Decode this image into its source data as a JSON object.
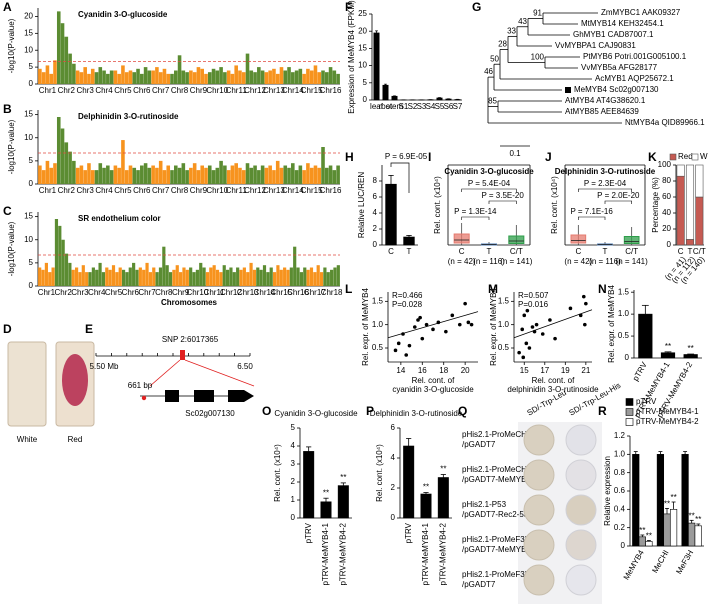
{
  "panel_labels": [
    "A",
    "B",
    "C",
    "D",
    "E",
    "F",
    "G",
    "H",
    "I",
    "J",
    "K",
    "L",
    "M",
    "N",
    "O",
    "P",
    "Q",
    "R"
  ],
  "chart_data": [
    {
      "type": "manhattan",
      "title": "Cyanidin 3-O-glucoside",
      "ylabel": "-log10(P-value)",
      "categories": [
        "Chr1",
        "Chr2",
        "Chr3",
        "Chr4",
        "Chr5",
        "Chr6",
        "Chr7",
        "Chr8",
        "Chr9",
        "Chr10",
        "Chr11",
        "Chr12",
        "Chr13",
        "Chr14",
        "Chr15",
        "Chr16"
      ],
      "values": [
        [
          4.5,
          3.5,
          5.5,
          3,
          7
        ],
        [
          21.5,
          18,
          14,
          9,
          6
        ],
        [
          4,
          3.5,
          5,
          3,
          4.5
        ],
        [
          3.5,
          5,
          4,
          3,
          4
        ],
        [
          4,
          3,
          5.5,
          3.5,
          4
        ],
        [
          3.5,
          4.5,
          3,
          5,
          4
        ],
        [
          4,
          5,
          3.5,
          4.5,
          3
        ],
        [
          3,
          4,
          8.5,
          4,
          3.5
        ],
        [
          4,
          3.5,
          5,
          4.5,
          3
        ],
        [
          3.5,
          4.5,
          4,
          5,
          3.5
        ],
        [
          4,
          3,
          5.5,
          4,
          3.5
        ],
        [
          9,
          4,
          3.5,
          5,
          4
        ],
        [
          3.5,
          4,
          4.5,
          3,
          5
        ],
        [
          4,
          5,
          3.5,
          4,
          4.5
        ],
        [
          3,
          4.5,
          4,
          5.5,
          3.5
        ],
        [
          4,
          3.5,
          5,
          4,
          3
        ]
      ],
      "colors": [
        "#f7931e",
        "#5b8c32"
      ],
      "threshold": 6.7,
      "ylim": [
        0,
        22.5
      ],
      "yticks": [
        0,
        5,
        10,
        15,
        20
      ]
    },
    {
      "type": "manhattan",
      "title": "Delphinidin 3-O-rutinoside",
      "ylabel": "-log10(P-value)",
      "categories": [
        "Chr1",
        "Chr2",
        "Chr3",
        "Chr4",
        "Chr5",
        "Chr6",
        "Chr7",
        "Chr8",
        "Chr9",
        "Chr10",
        "Chr11",
        "Chr12",
        "Chr13",
        "Chr14",
        "Chr15",
        "Chr16"
      ],
      "values": [
        [
          4,
          3,
          5,
          3.5,
          4.5
        ],
        [
          14.5,
          12,
          9,
          7,
          5
        ],
        [
          3.5,
          4,
          3,
          4.5,
          3
        ],
        [
          3,
          4.5,
          3.5,
          4,
          3
        ],
        [
          4,
          3.5,
          9.5,
          3,
          4
        ],
        [
          3.5,
          3,
          4,
          4.5,
          3.5
        ],
        [
          4,
          3.5,
          5,
          3,
          4
        ],
        [
          3,
          4,
          3.5,
          4.5,
          3
        ],
        [
          3.5,
          4.5,
          3,
          4,
          3.5
        ],
        [
          4,
          3,
          3.5,
          5,
          4
        ],
        [
          3,
          4,
          4.5,
          3.5,
          3
        ],
        [
          4.5,
          3.5,
          4,
          3,
          4
        ],
        [
          3.5,
          4,
          3,
          5,
          3.5
        ],
        [
          4,
          3.5,
          4.5,
          3,
          4
        ],
        [
          3,
          4.5,
          3.5,
          4,
          3.5
        ],
        [
          8,
          3.5,
          4,
          3,
          4
        ]
      ],
      "colors": [
        "#f7931e",
        "#5b8c32"
      ],
      "threshold": 6.7,
      "ylim": [
        0,
        16
      ],
      "yticks": [
        0,
        5,
        10,
        15
      ]
    },
    {
      "type": "manhattan",
      "title": "SR endothelium color",
      "ylabel": "-log10(P-value)",
      "xlabel": "Chromosomes",
      "categories": [
        "Chr1",
        "Chr2",
        "Chr3",
        "Chr4",
        "Chr5",
        "Chr6",
        "Chr7",
        "Chr8",
        "Chr9",
        "Chr10",
        "Chr11",
        "Chr12",
        "Chr13",
        "Chr14",
        "Chr15",
        "Chr16",
        "Chr17",
        "Chr18"
      ],
      "values": [
        [
          4,
          3.5,
          5,
          3,
          4
        ],
        [
          14.5,
          13,
          10,
          7,
          5
        ],
        [
          3.5,
          4,
          3,
          4.5,
          3
        ],
        [
          3,
          4,
          3.5,
          5,
          3
        ],
        [
          4,
          3.5,
          4.5,
          3,
          4
        ],
        [
          3.5,
          3,
          4,
          5,
          3.5
        ],
        [
          4,
          3.5,
          5,
          3,
          4
        ],
        [
          3,
          4,
          8.5,
          4.5,
          3
        ],
        [
          3.5,
          4.5,
          3,
          4,
          3.5
        ],
        [
          4,
          3,
          3.5,
          5,
          4
        ],
        [
          3,
          4,
          4.5,
          3.5,
          3
        ],
        [
          4.5,
          3.5,
          4,
          3,
          4
        ],
        [
          3.5,
          4,
          3,
          5,
          3.5
        ],
        [
          4,
          3.5,
          4.5,
          3,
          4
        ],
        [
          3,
          4.5,
          3.5,
          4,
          3.5
        ],
        [
          4,
          8.5,
          4,
          3,
          4
        ],
        [
          3.5,
          4,
          3,
          4.5,
          3
        ],
        [
          4,
          3,
          3.5,
          4,
          4.5
        ]
      ],
      "colors": [
        "#f7931e",
        "#5b8c32"
      ],
      "threshold": 6.7,
      "ylim": [
        0,
        16
      ],
      "yticks": [
        0,
        5,
        10,
        15
      ]
    },
    {
      "type": "bar",
      "ylabel": "Expression of MeMYB4 (FPKM)",
      "categories": [
        "leaf",
        "root",
        "stem",
        "S1",
        "S2",
        "S3",
        "S4",
        "S5",
        "S6",
        "S7"
      ],
      "values": [
        19.5,
        4.3,
        1.1,
        0.05,
        0.05,
        0.05,
        0.1,
        0.6,
        0.3,
        0.15
      ],
      "errors": [
        0.6,
        0.3,
        0.1,
        0,
        0,
        0,
        0,
        0.1,
        0.05,
        0.05
      ],
      "color": "#000000",
      "ylim": [
        0,
        25
      ],
      "yticks": [
        0,
        5,
        10,
        15,
        20,
        25
      ]
    },
    {
      "type": "bar",
      "ylabel": "Relative LUC/REN",
      "categories": [
        "C",
        "T"
      ],
      "values": [
        7.6,
        1.0
      ],
      "errors": [
        1.1,
        0.2
      ],
      "p_value": "P = 6.9E-05",
      "color": "#000000",
      "ylim": [
        0,
        10
      ],
      "yticks": [
        0,
        2,
        4,
        6,
        8
      ]
    },
    {
      "type": "box",
      "title": "Cyanidin 3-O-glucoside",
      "ylabel": "Rel. cont. (x10⁴)",
      "categories": [
        "C",
        "T",
        "C/T"
      ],
      "n_labels": [
        "(n = 42)",
        "(n = 116)",
        "(n = 141)"
      ],
      "boxes": [
        {
          "whisker_low": 0,
          "q1": 0.2,
          "median": 0.5,
          "q3": 1.1,
          "whisker_high": 2.2
        },
        {
          "whisker_low": 0,
          "q1": 0.02,
          "median": 0.05,
          "q3": 0.1,
          "whisker_high": 0.3
        },
        {
          "whisker_low": 0,
          "q1": 0.15,
          "median": 0.4,
          "q3": 0.9,
          "whisker_high": 2.0
        }
      ],
      "colors": [
        "#e57b6f",
        "#4a7ab5",
        "#2e9e4a"
      ],
      "p_values": [
        "P = 5.4E-04",
        "P = 3.5E-20",
        "P = 1.3E-14"
      ],
      "ylim": [
        0,
        8
      ]
    },
    {
      "type": "box",
      "title": "Delphinidin 3-O-rutinoside",
      "ylabel": "Rel. cont. (x10⁴)",
      "categories": [
        "C",
        "T",
        "C/T"
      ],
      "n_labels": [
        "(n = 42)",
        "(n = 116)",
        "(n = 141)"
      ],
      "boxes": [
        {
          "whisker_low": 0,
          "q1": 0.2,
          "median": 0.45,
          "q3": 1.0,
          "whisker_high": 2.0
        },
        {
          "whisker_low": 0,
          "q1": 0.02,
          "median": 0.05,
          "q3": 0.1,
          "whisker_high": 0.3
        },
        {
          "whisker_low": 0,
          "q1": 0.15,
          "median": 0.35,
          "q3": 0.85,
          "whisker_high": 1.8
        }
      ],
      "colors": [
        "#e57b6f",
        "#4a7ab5",
        "#2e9e4a"
      ],
      "p_values": [
        "P = 2.3E-04",
        "P = 2.0E-20",
        "P = 7.1E-16"
      ],
      "ylim": [
        0,
        8
      ]
    },
    {
      "type": "stacked_bar",
      "ylabel": "Percentage (%)",
      "categories": [
        "C",
        "T",
        "C/T"
      ],
      "n_labels": [
        "(n = 41)",
        "(n = 112)",
        "(n = 140)"
      ],
      "series": [
        {
          "name": "Red",
          "color": "#c55a52",
          "values": [
            86,
            7,
            60
          ]
        },
        {
          "name": "White",
          "color": "#ffffff",
          "values": [
            14,
            93,
            40
          ]
        }
      ],
      "ylim": [
        0,
        100
      ],
      "yticks": [
        0,
        20,
        40,
        60,
        80,
        100
      ]
    },
    {
      "type": "scatter",
      "annotations": [
        "R=0.466",
        "P=0.028"
      ],
      "ylabel": "Rel. expr. of MeMYB4",
      "xlabel": [
        "Rel. cont. of",
        "cyanidin 3-O-glucoside"
      ],
      "x": [
        13.5,
        14.2,
        14.8,
        15.3,
        15.6,
        16.0,
        16.4,
        17.0,
        17.5,
        18.2,
        18.8,
        19.5,
        20.0,
        20.3,
        20.6,
        14.5,
        15.8,
        13.8
      ],
      "y": [
        0.45,
        0.8,
        0.55,
        0.95,
        1.1,
        0.7,
        1.0,
        0.9,
        1.05,
        0.85,
        1.2,
        1.0,
        1.45,
        1.05,
        1.0,
        0.35,
        1.15,
        0.6
      ],
      "fit_line": {
        "x": [
          12.8,
          21.2
        ],
        "y": [
          0.72,
          1.28
        ]
      },
      "xlim": [
        12.8,
        21.2
      ],
      "ylim": [
        0.2,
        1.7
      ],
      "xticks": [
        14,
        16,
        18,
        20
      ],
      "yticks": [
        0.5,
        {
          "value": 1,
          "label": "1.0"
        },
        1.5
      ]
    },
    {
      "type": "scatter",
      "annotations": [
        "R=0.507",
        "P=0.016"
      ],
      "ylabel": "Rel. expr. of MeMYB4",
      "xlabel": [
        "Rel. cont. of",
        "delphinidin 3-O-rutinoside"
      ],
      "x": [
        14.5,
        14.8,
        15.0,
        15.2,
        15.5,
        15.8,
        16.2,
        16.8,
        17.5,
        18.0,
        19.5,
        20.5,
        20.8,
        21.0,
        15.3,
        14.9,
        16.0,
        20.9
      ],
      "y": [
        0.4,
        0.9,
        1.2,
        0.6,
        0.5,
        0.95,
        1.0,
        0.8,
        1.1,
        0.7,
        1.35,
        1.2,
        1.6,
        1.45,
        1.3,
        0.3,
        0.85,
        1.0
      ],
      "fit_line": {
        "x": [
          14,
          21.6
        ],
        "y": [
          0.72,
          1.32
        ]
      },
      "xlim": [
        14,
        21.6
      ],
      "ylim": [
        0.2,
        1.7
      ],
      "xticks": [
        15,
        17,
        19,
        21
      ],
      "yticks": [
        0.5,
        {
          "value": 1,
          "label": "1.0"
        },
        1.5
      ]
    },
    {
      "type": "bar",
      "ylabel": "Rel. expr. of MeMYB4",
      "categories": [
        "pTRV",
        "pTRV-MeMYB4-1",
        "pTRV-MeMYB4-2"
      ],
      "values": [
        1.0,
        0.12,
        0.08
      ],
      "errors": [
        0.2,
        0.02,
        0.01
      ],
      "significance": [
        null,
        "**",
        "**"
      ],
      "color": "#000000",
      "ylim": [
        0,
        1.55
      ],
      "yticks": [
        0,
        0.5,
        {
          "value": 1,
          "label": "1.0"
        },
        1.5
      ]
    },
    {
      "type": "bar",
      "title": "Cyanidin 3-O-glucoside",
      "ylabel": "Rel. cont. (x10⁴)",
      "categories": [
        "pTRV",
        "pTRV-MeMYB4-1",
        "pTRV-MeMYB4-2"
      ],
      "values": [
        3.7,
        0.9,
        1.8
      ],
      "errors": [
        0.25,
        0.2,
        0.15
      ],
      "significance": [
        null,
        "**",
        "**"
      ],
      "color": "#000000",
      "ylim": [
        0,
        5
      ],
      "yticks": [
        0,
        1,
        2,
        3,
        4,
        5
      ]
    },
    {
      "type": "bar",
      "title": "Delphinidin 3-O-rutinoside",
      "ylabel": "Rel. cont. (x10⁴)",
      "categories": [
        "pTRV",
        "pTRV-MeMYB4-1",
        "pTRV-MeMYB4-2"
      ],
      "values": [
        4.8,
        1.6,
        2.7
      ],
      "errors": [
        0.5,
        0.1,
        0.2
      ],
      "significance": [
        null,
        "**",
        "**"
      ],
      "color": "#000000",
      "ylim": [
        0,
        6
      ],
      "yticks": [
        0,
        2,
        4,
        6
      ]
    },
    {
      "type": "grouped_bar",
      "ylabel": "Relative expression",
      "categories": [
        "MeMYB4",
        "MeCHI",
        "MeF3H"
      ],
      "series": [
        {
          "name": "pTRV",
          "color": "#000000",
          "values": [
            1.0,
            1.0,
            1.0
          ],
          "errors": [
            0.03,
            0.03,
            0.03
          ],
          "significance": [
            null,
            null,
            null
          ]
        },
        {
          "name": "pTRV-MeMYB4-1",
          "color": "#9a9a9a",
          "values": [
            0.1,
            0.35,
            0.25
          ],
          "errors": [
            0.02,
            0.06,
            0.03
          ],
          "significance": [
            "**",
            "**",
            "**"
          ]
        },
        {
          "name": "pTRV-MeMYB4-2",
          "color": "#ffffff",
          "values": [
            0.05,
            0.4,
            0.22
          ],
          "errors": [
            0.01,
            0.08,
            0.02
          ],
          "significance": [
            "**",
            "**",
            "**"
          ]
        }
      ],
      "ylim": [
        0,
        1.2
      ],
      "yticks": [
        0,
        0.2,
        0.4,
        0.6,
        0.8,
        {
          "value": 1,
          "label": "1.0"
        },
        1.2
      ]
    }
  ],
  "photos": {
    "labels": [
      "White",
      "Red"
    ]
  },
  "gene_diagram": {
    "snp": "SNP 2:6017365",
    "start": "5.50 Mb",
    "end": "6.50",
    "promoter": "661 bp",
    "gene": "Sc02g007130"
  },
  "tree": {
    "taxa": [
      "ZmMYBC1 AAK09327",
      "MtMYB14 KEH32454.1",
      "GhMYB1 CAD87007.1",
      "VvMYBPA1 CAJ90831",
      "PtMYB6 Potri.001G005100.1",
      "VvMYB5a AFG28177",
      "AcMYB1 AQP25672.1",
      "MeMYB4 Sc02g007130",
      "AtMYB4 AT4G38620.1",
      "AtMYB85 AEE84639",
      "NtMYB4a QID89966.1"
    ],
    "bootstrap": [
      91,
      43,
      33,
      28,
      50,
      100,
      46,
      85
    ],
    "scale": 0.1
  },
  "yeast": {
    "columns": [
      "SD/-Trp-Leu",
      "SD/-Trp-Leu-His"
    ],
    "rows": [
      [
        "pHis2.1-ProMeCHI",
        "/pGADT7"
      ],
      [
        "pHis2.1-ProMeCHI",
        "/pGADT7-MeMYB4"
      ],
      [
        "pHis2.1-P53",
        "/pGADT7-Rec2-53"
      ],
      [
        "pHis2.1-ProMeF3H",
        "/pGADT7-MeMYB4"
      ],
      [
        "pHis2.1-ProMeF3H",
        "/pGADT7"
      ]
    ]
  }
}
